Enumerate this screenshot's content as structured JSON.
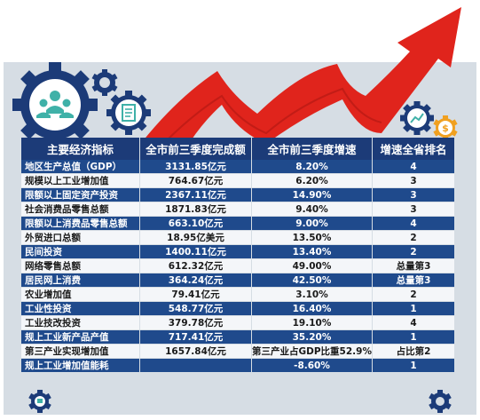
{
  "table": {
    "headers": [
      "主要经济指标",
      "全市前三季度完成额",
      "全市前三季度增速",
      "增速全省排名"
    ],
    "rows": [
      [
        "地区生产总值（GDP）",
        "3131.85亿元",
        "8.20%",
        "4"
      ],
      [
        "规模以上工业增加值",
        "764.67亿元",
        "6.20%",
        "3"
      ],
      [
        "限额以上固定资产投资",
        "2367.11亿元",
        "14.90%",
        "3"
      ],
      [
        "社会消费品零售总额",
        "1871.83亿元",
        "9.40%",
        "3"
      ],
      [
        "限额以上消费品零售总额",
        "663.10亿元",
        "9.00%",
        "4"
      ],
      [
        "外贸进口总额",
        "18.95亿美元",
        "13.50%",
        "2"
      ],
      [
        "民间投资",
        "1400.11亿元",
        "13.40%",
        "2"
      ],
      [
        "网络零售总额",
        "612.32亿元",
        "49.00%",
        "总量第3"
      ],
      [
        "居民网上消费",
        "364.24亿元",
        "42.50%",
        "总量第3"
      ],
      [
        "农业增加值",
        "79.41亿元",
        "3.10%",
        "2"
      ],
      [
        "工业性投资",
        "548.77亿元",
        "16.40%",
        "1"
      ],
      [
        "工业技改投资",
        "379.78亿元",
        "19.10%",
        "4"
      ],
      [
        "规上工业新产品产值",
        "717.41亿元",
        "35.20%",
        "1"
      ],
      [
        "第三产业实现增加值",
        "1657.84亿元",
        "第三产业占GDP比重52.9%",
        "占比第2"
      ],
      [
        "规上工业增加值能耗",
        "",
        "-8.60%",
        "1"
      ]
    ]
  },
  "chart_data": {
    "type": "table",
    "columns": [
      "主要经济指标",
      "全市前三季度完成额",
      "全市前三季度增速",
      "增速全省排名"
    ],
    "rows": [
      [
        "地区生产总值（GDP）",
        "3131.85亿元",
        "8.20%",
        "4"
      ],
      [
        "规模以上工业增加值",
        "764.67亿元",
        "6.20%",
        "3"
      ],
      [
        "限额以上固定资产投资",
        "2367.11亿元",
        "14.90%",
        "3"
      ],
      [
        "社会消费品零售总额",
        "1871.83亿元",
        "9.40%",
        "3"
      ],
      [
        "限额以上消费品零售总额",
        "663.10亿元",
        "9.00%",
        "4"
      ],
      [
        "外贸进口总额",
        "18.95亿美元",
        "13.50%",
        "2"
      ],
      [
        "民间投资",
        "1400.11亿元",
        "13.40%",
        "2"
      ],
      [
        "网络零售总额",
        "612.32亿元",
        "49.00%",
        "总量第3"
      ],
      [
        "居民网上消费",
        "364.24亿元",
        "42.50%",
        "总量第3"
      ],
      [
        "农业增加值",
        "79.41亿元",
        "3.10%",
        "2"
      ],
      [
        "工业性投资",
        "548.77亿元",
        "16.40%",
        "1"
      ],
      [
        "工业技改投资",
        "379.78亿元",
        "19.10%",
        "4"
      ],
      [
        "规上工业新产品产值",
        "717.41亿元",
        "35.20%",
        "1"
      ],
      [
        "第三产业实现增加值",
        "1657.84亿元",
        "第三产业占GDP比重52.9%",
        "占比第2"
      ],
      [
        "规上工业增加值能耗",
        "",
        "-8.60%",
        "1"
      ]
    ]
  },
  "colors": {
    "panel": "#d6dde4",
    "header": "#1c3b78",
    "row_dark": "#1f4a8c",
    "row_light": "#f4f6f9",
    "arrow": "#e0241c",
    "gear_orange": "#f0a020"
  },
  "icons": [
    "gear-team-icon",
    "small-gear-icon",
    "document-gear-icon",
    "chart-gear-icon",
    "dollar-gear-icon",
    "rising-arrow-icon"
  ]
}
